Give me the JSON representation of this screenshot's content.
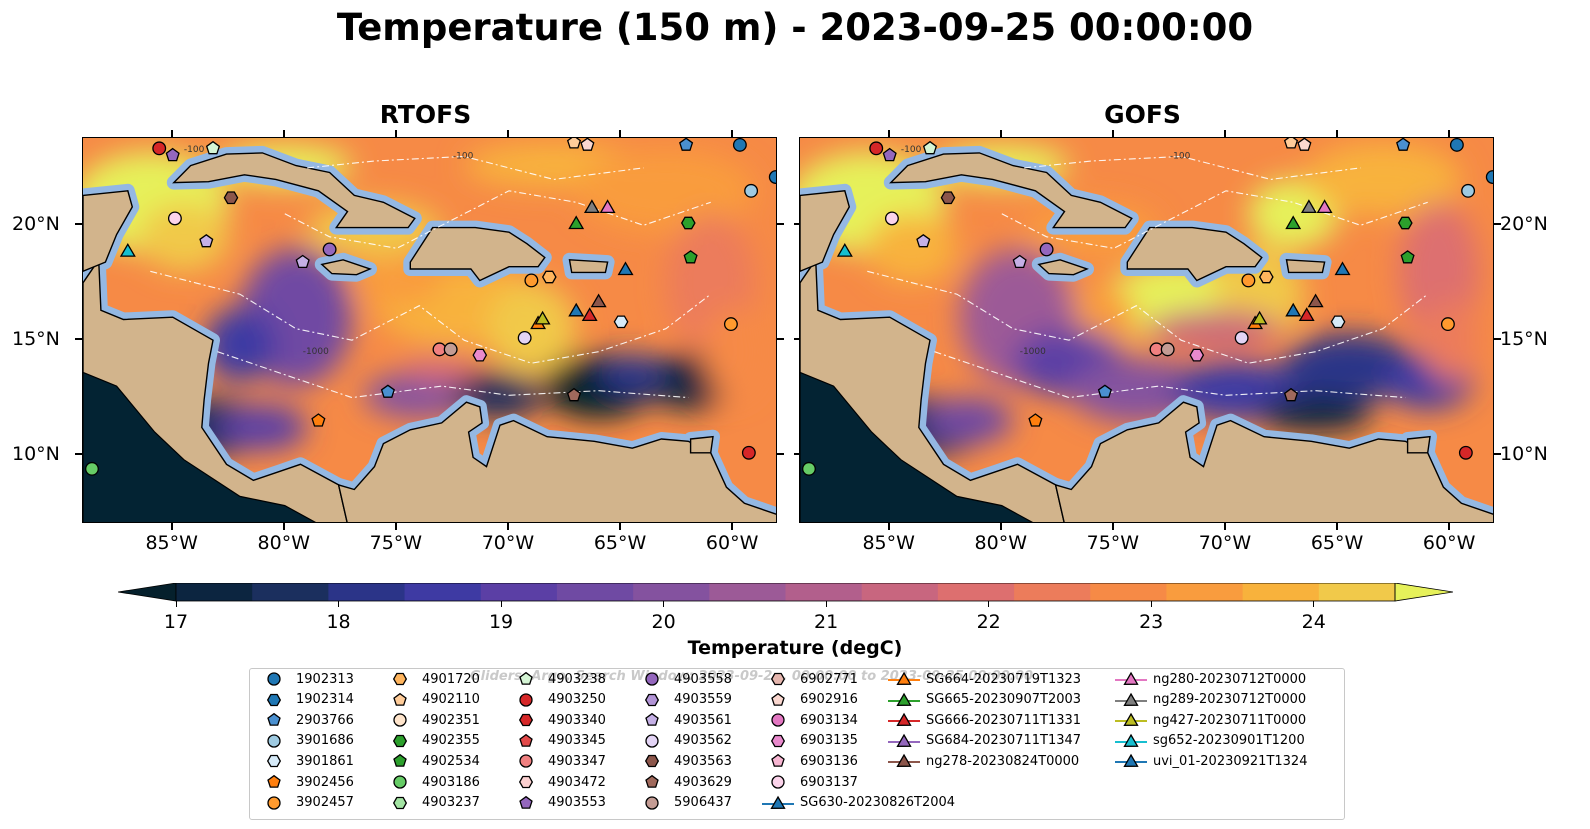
{
  "figure": {
    "title": "Temperature (150 m) - 2023-09-25 00:00:00",
    "panels": [
      {
        "id": "rtofs",
        "title": "RTOFS"
      },
      {
        "id": "gofs",
        "title": "GOFS"
      }
    ],
    "x_tick_labels": [
      "85°W",
      "80°W",
      "75°W",
      "70°W",
      "65°W",
      "60°W"
    ],
    "y_tick_labels": [
      "20°N",
      "15°N",
      "10°N"
    ],
    "contour_labels": [
      "-100",
      "-1000"
    ],
    "colors": {
      "land": "#d2b48c",
      "shelf": "#94b8e3",
      "deep": "#032333"
    }
  },
  "colorbar": {
    "label": "Temperature (degC)",
    "tick_labels": [
      "17",
      "18",
      "19",
      "20",
      "21",
      "22",
      "23",
      "24"
    ],
    "min": 17,
    "max": 24.5,
    "step": 0.5,
    "colors": [
      "#0c2540",
      "#1b2f5e",
      "#2b3488",
      "#3e3aa3",
      "#5b3fa5",
      "#6f4aa3",
      "#84529f",
      "#9c5a97",
      "#b25f8c",
      "#c8667f",
      "#dd6f6f",
      "#ec7c5b",
      "#f68a46",
      "#f99c3e",
      "#f8b23c",
      "#f1c94a"
    ],
    "under_color": "#05202c",
    "over_color": "#e6f15a"
  },
  "legend": {
    "watermark": "Gliders, Argo, Search Window: 2023-09-2... 00:00:00 to 2023-09-25 00:00:00",
    "items": [
      {
        "label": "1902313",
        "marker": "circle",
        "color": "#1f77b4"
      },
      {
        "label": "1902314",
        "marker": "hexagon",
        "color": "#1f77b4"
      },
      {
        "label": "2903766",
        "marker": "pentagon",
        "color": "#4a90d0"
      },
      {
        "label": "3901686",
        "marker": "circle",
        "color": "#9ecae1"
      },
      {
        "label": "3901861",
        "marker": "hexagon",
        "color": "#d6eaf8"
      },
      {
        "label": "3902456",
        "marker": "pentagon",
        "color": "#ff7f0e"
      },
      {
        "label": "3902457",
        "marker": "circle",
        "color": "#ff9a2e"
      },
      {
        "label": "4901720",
        "marker": "hexagon",
        "color": "#ffb55e"
      },
      {
        "label": "4902110",
        "marker": "pentagon",
        "color": "#ffcc99"
      },
      {
        "label": "4902351",
        "marker": "circle",
        "color": "#ffe5cc"
      },
      {
        "label": "4902355",
        "marker": "hexagon",
        "color": "#2ca02c"
      },
      {
        "label": "4902534",
        "marker": "pentagon",
        "color": "#2ca02c"
      },
      {
        "label": "4903186",
        "marker": "circle",
        "color": "#66cc66"
      },
      {
        "label": "4903237",
        "marker": "hexagon",
        "color": "#a3e4a3"
      },
      {
        "label": "4903238",
        "marker": "pentagon",
        "color": "#d5f5d5"
      },
      {
        "label": "4903250",
        "marker": "circle",
        "color": "#d62728"
      },
      {
        "label": "4903340",
        "marker": "hexagon",
        "color": "#d62728"
      },
      {
        "label": "4903345",
        "marker": "pentagon",
        "color": "#e34a4a"
      },
      {
        "label": "4903347",
        "marker": "circle",
        "color": "#f08080"
      },
      {
        "label": "4903472",
        "marker": "hexagon",
        "color": "#fbd0d0"
      },
      {
        "label": "4903553",
        "marker": "pentagon",
        "color": "#9467bd"
      },
      {
        "label": "4903558",
        "marker": "circle",
        "color": "#9467bd"
      },
      {
        "label": "4903559",
        "marker": "hexagon",
        "color": "#b294d6"
      },
      {
        "label": "4903561",
        "marker": "pentagon",
        "color": "#c5b0e6"
      },
      {
        "label": "4903562",
        "marker": "circle",
        "color": "#e3d4f5"
      },
      {
        "label": "4903563",
        "marker": "hexagon",
        "color": "#8c564b"
      },
      {
        "label": "4903629",
        "marker": "pentagon",
        "color": "#a0695c"
      },
      {
        "label": "5906437",
        "marker": "circle",
        "color": "#c49c94"
      },
      {
        "label": "6902771",
        "marker": "hexagon",
        "color": "#e5b6ae"
      },
      {
        "label": "6902916",
        "marker": "pentagon",
        "color": "#fad7cf"
      },
      {
        "label": "6903134",
        "marker": "circle",
        "color": "#e377c2"
      },
      {
        "label": "6903135",
        "marker": "hexagon",
        "color": "#e98acd"
      },
      {
        "label": "6903136",
        "marker": "pentagon",
        "color": "#f7b6d2"
      },
      {
        "label": "6903137",
        "marker": "circle",
        "color": "#fbd3ea"
      },
      {
        "label": "SG630-20230826T2004",
        "marker": "triangle",
        "color": "#1f77b4"
      },
      {
        "label": "SG664-20230719T1323",
        "marker": "triangle",
        "color": "#ff7f0e"
      },
      {
        "label": "SG665-20230907T2003",
        "marker": "triangle",
        "color": "#2ca02c"
      },
      {
        "label": "SG666-20230711T1331",
        "marker": "triangle",
        "color": "#d62728"
      },
      {
        "label": "SG684-20230711T1347",
        "marker": "triangle",
        "color": "#9467bd"
      },
      {
        "label": "ng278-20230824T0000",
        "marker": "triangle",
        "color": "#8c564b"
      },
      {
        "label": "ng280-20230712T0000",
        "marker": "triangle",
        "color": "#e377c2"
      },
      {
        "label": "ng289-20230712T0000",
        "marker": "triangle",
        "color": "#7f7f7f"
      },
      {
        "label": "ng427-20230711T0000",
        "marker": "triangle",
        "color": "#bcbd22"
      },
      {
        "label": "sg652-20230901T1200",
        "marker": "triangle",
        "color": "#17becf"
      },
      {
        "label": "uvi_01-20230921T1324",
        "marker": "triangle",
        "color": "#1f77b4"
      }
    ]
  },
  "observations": [
    {
      "id": "4903250",
      "lon": -85.6,
      "lat": 23.35
    },
    {
      "id": "4903553",
      "lon": -85.0,
      "lat": 23.05
    },
    {
      "id": "4903238",
      "lon": -83.2,
      "lat": 23.35
    },
    {
      "id": "1902313",
      "lon": -59.7,
      "lat": 23.5
    },
    {
      "id": "2903766",
      "lon": -62.1,
      "lat": 23.5
    },
    {
      "id": "4902110",
      "lon": -67.1,
      "lat": 23.6
    },
    {
      "id": "6902916",
      "lon": -66.5,
      "lat": 23.5
    },
    {
      "id": "1902313",
      "lon": -58.1,
      "lat": 22.1
    },
    {
      "id": "3901686",
      "lon": -59.2,
      "lat": 21.5
    },
    {
      "id": "4903563",
      "lon": -82.4,
      "lat": 21.2
    },
    {
      "id": "6903137",
      "lon": -84.9,
      "lat": 20.3
    },
    {
      "id": "ng289-20230712T0000",
      "lon": -66.3,
      "lat": 20.8
    },
    {
      "id": "ng280-20230712T0000",
      "lon": -65.6,
      "lat": 20.8
    },
    {
      "id": "SG665-20230907T2003",
      "lon": -67.0,
      "lat": 20.1
    },
    {
      "id": "4902355",
      "lon": -62.0,
      "lat": 20.1
    },
    {
      "id": "4903561",
      "lon": -83.5,
      "lat": 19.3
    },
    {
      "id": "4903558",
      "lon": -78.0,
      "lat": 18.95
    },
    {
      "id": "sg652-20230901T1200",
      "lon": -87.0,
      "lat": 18.9
    },
    {
      "id": "4903561",
      "lon": -79.2,
      "lat": 18.4
    },
    {
      "id": "4902534",
      "lon": -61.9,
      "lat": 18.6
    },
    {
      "id": "uvi_01-20230921T1324",
      "lon": -64.8,
      "lat": 18.1
    },
    {
      "id": "4901720",
      "lon": -68.2,
      "lat": 17.75
    },
    {
      "id": "3902457",
      "lon": -69.0,
      "lat": 17.6
    },
    {
      "id": "ng278-20230824T0000",
      "lon": -66.0,
      "lat": 16.7
    },
    {
      "id": "SG630-20230826T2004",
      "lon": -67.0,
      "lat": 16.3
    },
    {
      "id": "SG666-20230711T1331",
      "lon": -66.4,
      "lat": 16.1
    },
    {
      "id": "SG664-20230719T1323",
      "lon": -68.7,
      "lat": 15.75
    },
    {
      "id": "ng427-20230711T0000",
      "lon": -68.5,
      "lat": 15.95
    },
    {
      "id": "3901861",
      "lon": -65.0,
      "lat": 15.8
    },
    {
      "id": "3902457",
      "lon": -60.1,
      "lat": 15.7
    },
    {
      "id": "4903347",
      "lon": -73.1,
      "lat": 14.6
    },
    {
      "id": "5906437",
      "lon": -72.6,
      "lat": 14.6
    },
    {
      "id": "6903135",
      "lon": -71.3,
      "lat": 14.35
    },
    {
      "id": "4903562",
      "lon": -69.3,
      "lat": 15.1
    },
    {
      "id": "2903766",
      "lon": -75.4,
      "lat": 12.75
    },
    {
      "id": "4903629",
      "lon": -67.1,
      "lat": 12.6
    },
    {
      "id": "3902456",
      "lon": -78.5,
      "lat": 11.5
    },
    {
      "id": "4903250",
      "lon": -59.3,
      "lat": 10.1
    },
    {
      "id": "4903186",
      "lon": -88.6,
      "lat": 9.4
    }
  ]
}
